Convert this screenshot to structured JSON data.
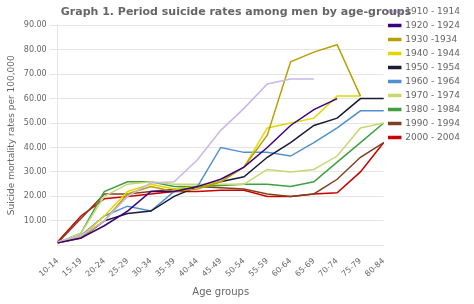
{
  "chart_data": {
    "type": "line",
    "title": "Graph 1. Period suicide rates among men by age-groups",
    "x_label": "Age groups",
    "y_label": "Suicide mortality rates per 100,000",
    "categories": [
      "10-14",
      "15-19",
      "20-24",
      "25-29",
      "30-34",
      "35-39",
      "40-44",
      "45-49",
      "50-54",
      "55-59",
      "60-64",
      "65-69",
      "70-74",
      "75-79",
      "80-84"
    ],
    "series": [
      {
        "name": "1910 - 1914",
        "color": "#c8b8e8",
        "values": [
          1.5,
          4.0,
          10.0,
          20.0,
          25.5,
          26.0,
          35.0,
          47.0,
          56.0,
          66.0,
          68.0,
          68.0,
          null,
          null,
          null
        ]
      },
      {
        "name": "1920 - 1924",
        "color": "#3a0080",
        "values": [
          1.0,
          3.0,
          8.0,
          14.0,
          22.0,
          22.0,
          24.0,
          27.0,
          32.0,
          40.0,
          49.0,
          55.5,
          60.0,
          null,
          null
        ]
      },
      {
        "name": "1930 -1934",
        "color": "#b8a000",
        "values": [
          1.0,
          3.0,
          10.0,
          21.0,
          24.0,
          22.0,
          23.0,
          26.0,
          32.0,
          45.0,
          75.0,
          79.0,
          82.0,
          61.0,
          null
        ]
      },
      {
        "name": "1940 - 1944",
        "color": "#e0d800",
        "values": [
          1.0,
          3.5,
          12.0,
          22.0,
          25.0,
          23.0,
          24.0,
          26.0,
          32.0,
          48.0,
          50.0,
          52.0,
          61.0,
          61.0,
          null
        ]
      },
      {
        "name": "1950 - 1954",
        "color": "#1a1a3a",
        "values": [
          1.0,
          3.0,
          10.0,
          13.0,
          14.0,
          20.0,
          24.0,
          26.0,
          28.0,
          36.0,
          42.0,
          49.0,
          52.0,
          60.0,
          60.0
        ]
      },
      {
        "name": "1960 - 1964",
        "color": "#5090d0",
        "values": [
          1.0,
          4.0,
          12.0,
          16.0,
          14.0,
          22.0,
          24.0,
          40.0,
          38.0,
          38.0,
          36.5,
          42.0,
          48.0,
          55.0,
          55.0
        ]
      },
      {
        "name": "1970 - 1974",
        "color": "#c8d870",
        "values": [
          1.0,
          5.0,
          20.0,
          25.0,
          26.0,
          25.0,
          25.0,
          25.0,
          25.0,
          31.0,
          30.0,
          31.0,
          36.5,
          48.0,
          50.0
        ]
      },
      {
        "name": "1980 - 1984",
        "color": "#40a040",
        "values": [
          1.0,
          5.0,
          22.0,
          26.0,
          26.0,
          24.0,
          24.0,
          24.5,
          25.0,
          25.0,
          24.0,
          26.0,
          34.0,
          42.0,
          50.0
        ]
      },
      {
        "name": "1990 - 1994",
        "color": "#804020",
        "values": [
          1.0,
          11.0,
          21.0,
          21.0,
          22.0,
          23.0,
          24.0,
          23.5,
          23.0,
          21.0,
          20.0,
          21.0,
          27.0,
          36.0,
          42.0
        ]
      },
      {
        "name": "2000 - 2004",
        "color": "#cc0000",
        "values": [
          1.5,
          12.0,
          19.0,
          20.0,
          21.0,
          22.0,
          22.0,
          22.5,
          22.5,
          20.0,
          20.0,
          21.0,
          21.5,
          30.0,
          42.0
        ]
      }
    ],
    "ylim": [
      0,
      90
    ],
    "yticks": [
      {
        "value": 10,
        "label": "10.00"
      },
      {
        "value": 20,
        "label": "20.00"
      },
      {
        "value": 30,
        "label": "30.00"
      },
      {
        "value": 40,
        "label": "40.00"
      },
      {
        "value": 50,
        "label": "50.00"
      },
      {
        "value": 60,
        "label": "60.00"
      },
      {
        "value": 70,
        "label": "70.00"
      },
      {
        "value": 80,
        "label": "80.00"
      },
      {
        "value": 90,
        "label": "90.00"
      }
    ],
    "grid": "y",
    "legend": "right"
  }
}
